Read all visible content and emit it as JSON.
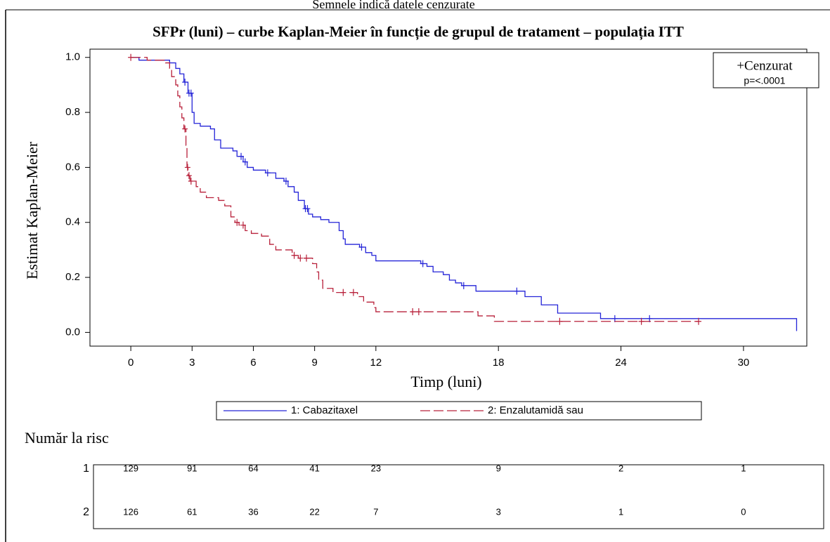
{
  "chart_data": {
    "type": "step",
    "note_top": "Semnele indică datele cenzurate",
    "title": "SFPr (luni) – curbe Kaplan-Meier în funcție de grupul de tratament – populația ITT",
    "x_label": "Timp (luni)",
    "y_label": "Estimat Kaplan-Meier",
    "xlim": [
      -2,
      33.1
    ],
    "ylim": [
      -0.05,
      1.03
    ],
    "xticks": [
      0,
      3,
      6,
      9,
      12,
      18,
      24,
      30
    ],
    "yticks": [
      {
        "value": 0,
        "label": "0.0"
      },
      {
        "value": 0.2,
        "label": "0.2"
      },
      {
        "value": 0.4,
        "label": "0.4"
      },
      {
        "value": 0.6,
        "label": "0.6"
      },
      {
        "value": 0.8,
        "label": "0.8"
      },
      {
        "value": 1,
        "label": "1.0"
      }
    ],
    "inset_legend": [
      "+Cenzurat",
      "p=<.0001"
    ],
    "series": [
      {
        "name": "1: Cabazitaxel",
        "color": "#2424d8",
        "dash": false,
        "x": [
          0,
          0.4,
          1.9,
          2.2,
          2.4,
          2.6,
          2.8,
          3.0,
          3.1,
          3.4,
          3.9,
          4.1,
          4.4,
          5.0,
          5.2,
          5.5,
          5.7,
          6.0,
          6.6,
          7.1,
          7.5,
          7.7,
          8.0,
          8.2,
          8.5,
          8.7,
          8.9,
          9.3,
          9.7,
          10.2,
          10.4,
          10.5,
          11.2,
          11.5,
          11.8,
          12.0,
          14.2,
          14.5,
          14.8,
          15.3,
          15.6,
          15.9,
          16.2,
          16.9,
          19.3,
          20.1,
          20.9,
          23.0,
          32.6,
          32.6
        ],
        "values": [
          1.0,
          0.99,
          0.98,
          0.96,
          0.94,
          0.91,
          0.87,
          0.8,
          0.76,
          0.75,
          0.74,
          0.7,
          0.67,
          0.66,
          0.64,
          0.62,
          0.6,
          0.59,
          0.58,
          0.56,
          0.55,
          0.53,
          0.51,
          0.48,
          0.45,
          0.43,
          0.42,
          0.41,
          0.4,
          0.37,
          0.34,
          0.32,
          0.31,
          0.29,
          0.28,
          0.26,
          0.25,
          0.24,
          0.22,
          0.21,
          0.19,
          0.18,
          0.17,
          0.15,
          0.13,
          0.1,
          0.07,
          0.05,
          0.05,
          0.005
        ],
        "censored": [
          2.65,
          2.85,
          2.95,
          5.4,
          5.6,
          6.7,
          7.6,
          8.55,
          8.65,
          11.3,
          14.3,
          16.3,
          18.9,
          23.7,
          25.4
        ]
      },
      {
        "name": "2: Enzalutamidă sau",
        "color": "#b8203a",
        "dash": true,
        "x": [
          0,
          0.8,
          1.7,
          1.9,
          2.0,
          2.2,
          2.3,
          2.4,
          2.5,
          2.6,
          2.7,
          2.75,
          2.8,
          2.9,
          3.2,
          3.4,
          3.7,
          4.3,
          4.6,
          4.9,
          5.1,
          5.3,
          5.6,
          5.9,
          6.4,
          6.8,
          7.1,
          7.9,
          8.2,
          8.9,
          9.1,
          9.2,
          9.4,
          9.9,
          11.1,
          11.4,
          11.9,
          12.0,
          17.0,
          17.8,
          27.8
        ],
        "values": [
          1.0,
          0.99,
          0.98,
          0.96,
          0.93,
          0.9,
          0.86,
          0.82,
          0.78,
          0.74,
          0.68,
          0.6,
          0.57,
          0.55,
          0.53,
          0.51,
          0.49,
          0.48,
          0.46,
          0.42,
          0.4,
          0.39,
          0.37,
          0.36,
          0.35,
          0.32,
          0.3,
          0.28,
          0.27,
          0.25,
          0.22,
          0.19,
          0.16,
          0.145,
          0.13,
          0.11,
          0.09,
          0.075,
          0.06,
          0.04,
          0.04
        ],
        "censored": [
          0,
          2.65,
          2.78,
          2.85,
          2.95,
          5.2,
          5.5,
          8.0,
          8.3,
          8.6,
          10.4,
          10.9,
          13.8,
          14.1,
          21.0,
          25.0,
          27.8
        ]
      }
    ],
    "risk_table": {
      "title": "Număr la risc",
      "times": [
        0,
        3,
        6,
        9,
        12,
        18,
        24,
        30
      ],
      "rows": [
        {
          "label": "1",
          "values": [
            129,
            91,
            64,
            41,
            23,
            9,
            2,
            1
          ]
        },
        {
          "label": "2",
          "values": [
            126,
            61,
            36,
            22,
            7,
            3,
            1,
            0
          ]
        }
      ]
    }
  }
}
